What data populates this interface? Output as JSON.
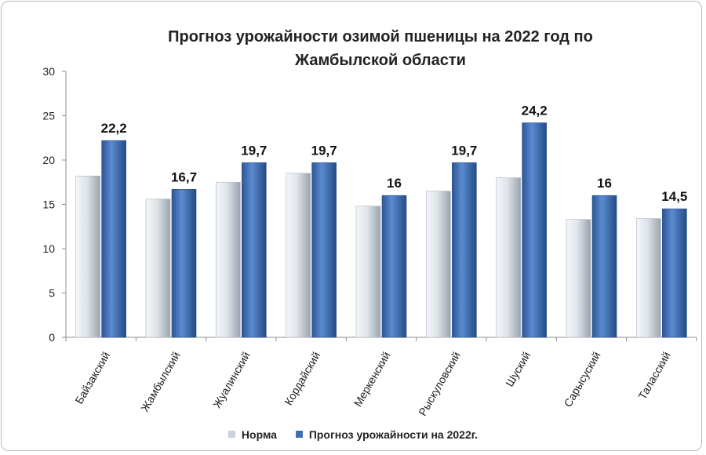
{
  "chart_data": {
    "type": "bar",
    "title_lines": [
      "Прогноз урожайности озимой пшеницы на 2022 год по",
      "Жамбылской области"
    ],
    "categories": [
      "Байзакский",
      "Жамбылский",
      "Жуалинский",
      "Кордайский",
      "Меркенский",
      "Рыскуловский",
      "Шуский",
      "Сарысуский",
      "Таласский"
    ],
    "series": [
      {
        "name": "Норма",
        "values": [
          18.2,
          15.6,
          17.5,
          18.5,
          14.8,
          16.5,
          18.0,
          13.3,
          13.4
        ],
        "color": "#c9d1dc",
        "labels": null
      },
      {
        "name": "Прогноз урожайности на 2022г.",
        "values": [
          22.2,
          16.7,
          19.7,
          19.7,
          16,
          19.7,
          24.2,
          16,
          14.5
        ],
        "color": "#3f6fb0",
        "labels": [
          "22,2",
          "16,7",
          "19,7",
          "19,7",
          "16",
          "19,7",
          "24,2",
          "16",
          "14,5"
        ]
      }
    ],
    "ylim": [
      0,
      30
    ],
    "yticks": [
      "0",
      "5",
      "10",
      "15",
      "20",
      "25",
      "30"
    ],
    "grid": false,
    "legend_position": "bottom",
    "xlabel": "",
    "ylabel": ""
  }
}
